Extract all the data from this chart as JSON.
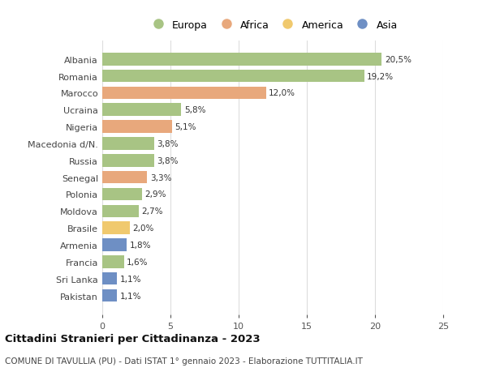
{
  "countries": [
    "Albania",
    "Romania",
    "Marocco",
    "Ucraina",
    "Nigeria",
    "Macedonia d/N.",
    "Russia",
    "Senegal",
    "Polonia",
    "Moldova",
    "Brasile",
    "Armenia",
    "Francia",
    "Sri Lanka",
    "Pakistan"
  ],
  "values": [
    20.5,
    19.2,
    12.0,
    5.8,
    5.1,
    3.8,
    3.8,
    3.3,
    2.9,
    2.7,
    2.0,
    1.8,
    1.6,
    1.1,
    1.1
  ],
  "labels": [
    "20,5%",
    "19,2%",
    "12,0%",
    "5,8%",
    "5,1%",
    "3,8%",
    "3,8%",
    "3,3%",
    "2,9%",
    "2,7%",
    "2,0%",
    "1,8%",
    "1,6%",
    "1,1%",
    "1,1%"
  ],
  "continents": [
    "Europa",
    "Europa",
    "Africa",
    "Europa",
    "Africa",
    "Europa",
    "Europa",
    "Africa",
    "Europa",
    "Europa",
    "America",
    "Asia",
    "Europa",
    "Asia",
    "Asia"
  ],
  "continent_colors": {
    "Europa": "#a8c484",
    "Africa": "#e8a87c",
    "America": "#f0c96e",
    "Asia": "#6e8fc4"
  },
  "legend_order": [
    "Europa",
    "Africa",
    "America",
    "Asia"
  ],
  "title": "Cittadini Stranieri per Cittadinanza - 2023",
  "subtitle": "COMUNE DI TAVULLIA (PU) - Dati ISTAT 1° gennaio 2023 - Elaborazione TUTTITALIA.IT",
  "xlim": [
    0,
    25
  ],
  "xticks": [
    0,
    5,
    10,
    15,
    20,
    25
  ],
  "background_color": "#ffffff",
  "grid_color": "#dddddd",
  "bar_height": 0.75
}
